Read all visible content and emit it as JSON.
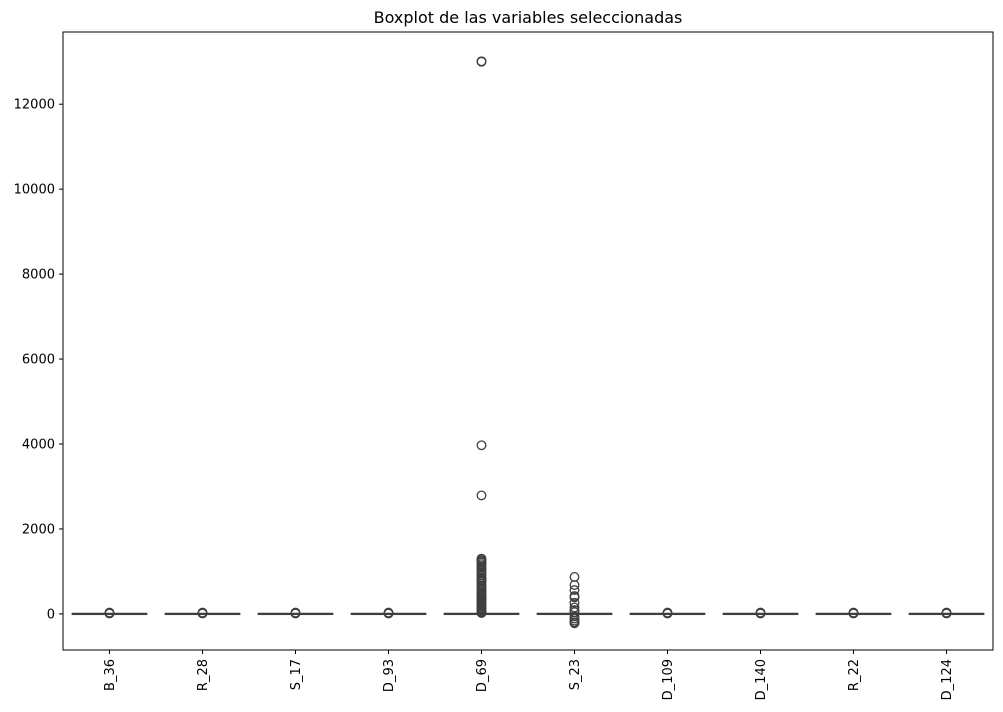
{
  "chart_data": {
    "type": "box",
    "title": "Boxplot de las variables seleccionadas",
    "xlabel": "",
    "ylabel": "",
    "ylim": [
      -850,
      13700
    ],
    "yticks": [
      0,
      2000,
      4000,
      6000,
      8000,
      10000,
      12000
    ],
    "ytick_labels": [
      "0",
      "2000",
      "4000",
      "6000",
      "8000",
      "10000",
      "12000"
    ],
    "categories": [
      "B_36",
      "R_28",
      "S_17",
      "D_93",
      "D_69",
      "S_23",
      "D_109",
      "D_140",
      "R_22",
      "D_124"
    ],
    "color": "#1f77b4",
    "series": [
      {
        "q1": 0,
        "median": 0,
        "q3": 0,
        "whisker_low": -5,
        "whisker_high": 5,
        "outliers": [
          10,
          20,
          30
        ]
      },
      {
        "q1": 0,
        "median": 0,
        "q3": 0,
        "whisker_low": -5,
        "whisker_high": 5,
        "outliers": [
          10,
          20,
          30
        ]
      },
      {
        "q1": 0,
        "median": 0,
        "q3": 0,
        "whisker_low": -5,
        "whisker_high": 5,
        "outliers": [
          10,
          20,
          30
        ]
      },
      {
        "q1": 0,
        "median": 0,
        "q3": 0,
        "whisker_low": -5,
        "whisker_high": 5,
        "outliers": [
          10,
          20,
          30
        ]
      },
      {
        "q1": 0,
        "median": 0,
        "q3": 0,
        "whisker_low": -5,
        "whisker_high": 5,
        "outliers": [
          13000,
          13010,
          3970,
          2790,
          1300,
          1270,
          1240,
          1210,
          1170,
          1130,
          1090,
          1050,
          1000,
          960,
          910,
          860,
          830,
          800,
          780,
          750,
          700,
          650,
          600,
          560,
          520,
          490,
          460,
          430,
          400,
          370,
          340,
          310,
          280,
          250,
          220,
          190,
          160,
          130,
          100,
          70,
          40,
          20
        ]
      },
      {
        "q1": 0,
        "median": 0,
        "q3": 0,
        "whisker_low": -5,
        "whisker_high": 5,
        "outliers": [
          870,
          680,
          560,
          420,
          390,
          260,
          150,
          90,
          40,
          -60,
          -110,
          -160,
          -200,
          -220
        ]
      },
      {
        "q1": 0,
        "median": 0,
        "q3": 0,
        "whisker_low": -5,
        "whisker_high": 5,
        "outliers": [
          10,
          20,
          30
        ]
      },
      {
        "q1": 0,
        "median": 0,
        "q3": 0,
        "whisker_low": -5,
        "whisker_high": 5,
        "outliers": [
          10,
          20,
          30
        ]
      },
      {
        "q1": 0,
        "median": 0,
        "q3": 0,
        "whisker_low": -5,
        "whisker_high": 5,
        "outliers": [
          10,
          20,
          30
        ]
      },
      {
        "q1": 0,
        "median": 0,
        "q3": 0,
        "whisker_low": -5,
        "whisker_high": 5,
        "outliers": [
          10,
          20,
          30
        ]
      }
    ]
  }
}
